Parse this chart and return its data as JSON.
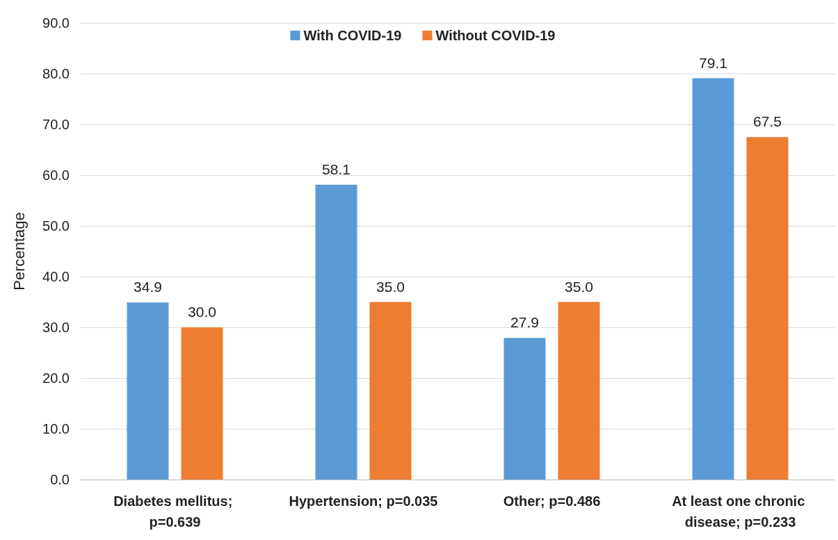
{
  "chart_data": {
    "type": "bar",
    "ylabel": "Percentage",
    "categories": [
      "Diabetes mellitus; p=0.639",
      "Hypertension; p=0.035",
      "Other; p=0.486",
      "At least one chronic disease; p=0.233"
    ],
    "series": [
      {
        "name": "With COVID-19",
        "color": "#5b9bd5",
        "values": [
          34.9,
          58.1,
          27.9,
          79.1
        ],
        "value_labels": [
          "34.9",
          "58.1",
          "27.9",
          "79.1"
        ]
      },
      {
        "name": "Without COVID-19",
        "color": "#ed7d31",
        "values": [
          30.0,
          35.0,
          35.0,
          67.5
        ],
        "value_labels": [
          "30.0",
          "35.0",
          "35.0",
          "67.5"
        ]
      }
    ],
    "ylim": [
      0,
      90
    ],
    "yticks": [
      {
        "value": 0,
        "label": "0.0"
      },
      {
        "value": 10,
        "label": "10.0"
      },
      {
        "value": 20,
        "label": "20.0"
      },
      {
        "value": 30,
        "label": "30.0"
      },
      {
        "value": 40,
        "label": "40.0"
      },
      {
        "value": 50,
        "label": "50.0"
      },
      {
        "value": 60,
        "label": "60.0"
      },
      {
        "value": 70,
        "label": "70.0"
      },
      {
        "value": 80,
        "label": "80.0"
      },
      {
        "value": 90,
        "label": "90.0"
      }
    ],
    "grid": "y",
    "legend": "top"
  }
}
